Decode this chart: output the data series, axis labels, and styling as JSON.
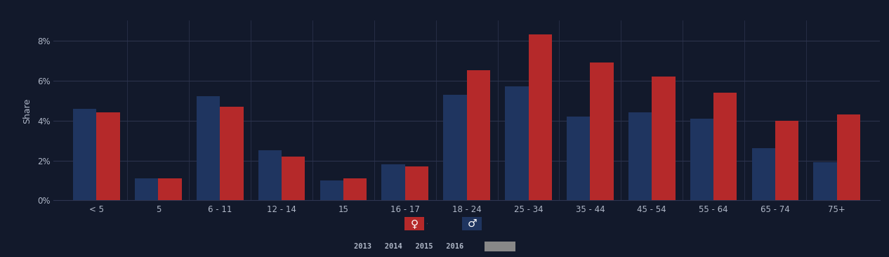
{
  "categories": [
    "< 5",
    "5",
    "6 - 11",
    "12 - 14",
    "15",
    "16 - 17",
    "18 - 24",
    "25 - 34",
    "35 - 44",
    "45 - 54",
    "55 - 64",
    "65 - 74",
    "75+"
  ],
  "male": [
    4.6,
    1.1,
    5.2,
    2.5,
    1.0,
    1.8,
    5.3,
    5.7,
    4.2,
    4.4,
    4.1,
    2.6,
    1.9
  ],
  "female": [
    4.4,
    1.1,
    4.7,
    2.2,
    1.1,
    1.7,
    6.5,
    8.3,
    6.9,
    6.2,
    5.4,
    4.0,
    4.3
  ],
  "female_color": "#b5292a",
  "male_color": "#1f3560",
  "background_color": "#12192b",
  "plot_bg": "#12192b",
  "grid_color": "#2e3550",
  "text_color": "#b0b8c8",
  "ylabel": "Share",
  "ylim": [
    0,
    9
  ],
  "yticks": [
    0,
    2,
    4,
    6,
    8
  ],
  "ytick_labels": [
    "0%",
    "2%",
    "4%",
    "6%",
    "8%"
  ],
  "bar_width": 0.38,
  "legend_gray_color": "#888888",
  "legend_years": [
    "2013",
    "2014",
    "2015",
    "2016"
  ]
}
